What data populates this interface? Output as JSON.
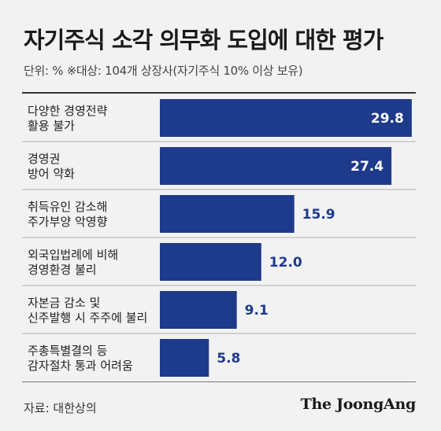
{
  "title": "자기주식 소각 의무화 도입에 대한 평가",
  "subtitle": "단위: %  ※대상: 104개 상장사(자기주식 10% 이상 보유)",
  "source": "자료: 대한상의",
  "logo": "The JoongAng",
  "colors": {
    "bar": "#1e3a8a",
    "label_inside": "#ffffff",
    "label_outside": "#1e3a8a",
    "background": "#f2f2f2"
  },
  "chart_data": {
    "type": "bar",
    "orientation": "horizontal",
    "categories": [
      [
        "다양한 경영전략",
        "활용 불가"
      ],
      [
        "경영권",
        "방어 약화"
      ],
      [
        "취득유인 감소해",
        "주가부양 악영향"
      ],
      [
        "외국입법례에 비해",
        "경영환경 불리"
      ],
      [
        "자본금 감소 및",
        "신주발행 시 주주에 불리"
      ],
      [
        "주총특별결의 등",
        "감자절차 통과 어려움"
      ]
    ],
    "values": [
      29.8,
      27.4,
      15.9,
      12.0,
      9.1,
      5.8
    ],
    "value_labels": [
      "29.8",
      "27.4",
      "15.9",
      "12.0",
      "9.1",
      "5.8"
    ],
    "unit": "%",
    "xlim": [
      0,
      30
    ],
    "grid": false,
    "legend": "none"
  }
}
